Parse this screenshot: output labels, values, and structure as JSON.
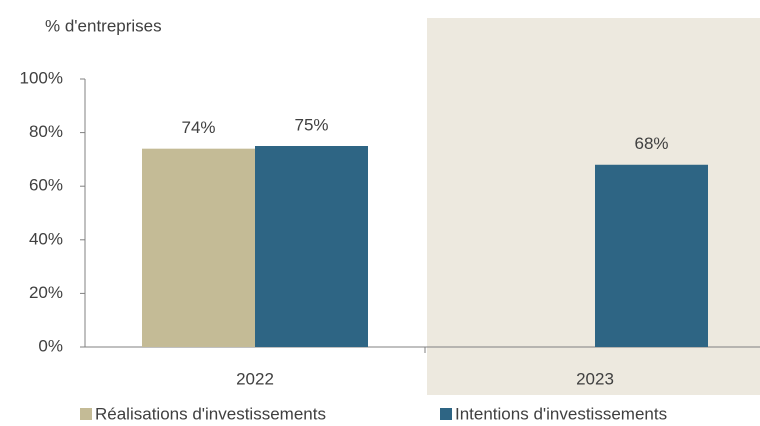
{
  "chart_data": {
    "type": "bar",
    "y_label": "% d'entreprises",
    "categories": [
      "2022",
      "2023"
    ],
    "series": [
      {
        "name": "Réalisations d'investissements",
        "color": "#c4bb96",
        "values": [
          74,
          null
        ],
        "value_labels": [
          "74%",
          null
        ]
      },
      {
        "name": "Intentions d'investissements",
        "color": "#2e6584",
        "values": [
          75,
          68
        ],
        "value_labels": [
          "75%",
          "68%"
        ]
      }
    ],
    "ylim": [
      0,
      100
    ],
    "yticks": [
      {
        "value": 0,
        "label": "0%"
      },
      {
        "value": 20,
        "label": "20%"
      },
      {
        "value": 40,
        "label": "40%"
      },
      {
        "value": 60,
        "label": "60%"
      },
      {
        "value": 80,
        "label": "80%"
      },
      {
        "value": 100,
        "label": "100%"
      }
    ],
    "grid": false,
    "legend": "bottom"
  }
}
